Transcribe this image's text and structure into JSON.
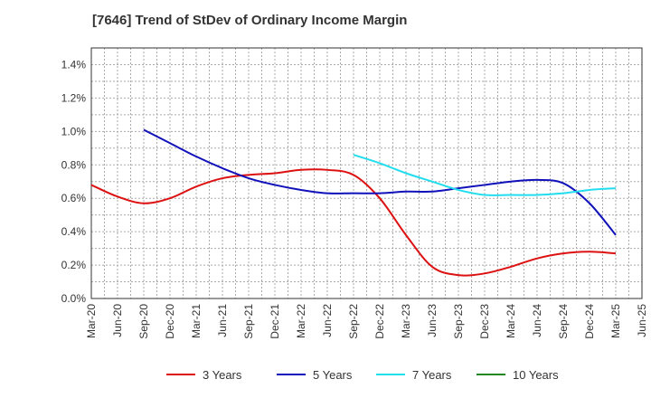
{
  "chart_data": {
    "type": "line",
    "title": "[7646]  Trend of StDev of Ordinary Income Margin",
    "xlabel": "",
    "ylabel": "",
    "x_ticks": [
      "Mar-20",
      "Jun-20",
      "Sep-20",
      "Dec-20",
      "Mar-21",
      "Jun-21",
      "Sep-21",
      "Dec-21",
      "Mar-22",
      "Jun-22",
      "Sep-22",
      "Dec-22",
      "Mar-23",
      "Jun-23",
      "Sep-23",
      "Dec-23",
      "Mar-24",
      "Jun-24",
      "Sep-24",
      "Dec-24",
      "Mar-25",
      "Jun-25"
    ],
    "y_ticks": [
      "0.0%",
      "0.2%",
      "0.4%",
      "0.6%",
      "0.8%",
      "1.0%",
      "1.2%",
      "1.4%"
    ],
    "ylim": [
      0,
      1.5
    ],
    "grid": true,
    "legend_position": "bottom",
    "series": [
      {
        "name": "3 Years",
        "color": "#dd1111",
        "points": [
          [
            0,
            0.68
          ],
          [
            1,
            0.61
          ],
          [
            2,
            0.57
          ],
          [
            3,
            0.6
          ],
          [
            4,
            0.67
          ],
          [
            5,
            0.72
          ],
          [
            6,
            0.74
          ],
          [
            7,
            0.75
          ],
          [
            8,
            0.77
          ],
          [
            9,
            0.77
          ],
          [
            10,
            0.74
          ],
          [
            11,
            0.6
          ],
          [
            12,
            0.38
          ],
          [
            13,
            0.19
          ],
          [
            14,
            0.14
          ],
          [
            15,
            0.15
          ],
          [
            16,
            0.19
          ],
          [
            17,
            0.24
          ],
          [
            18,
            0.27
          ],
          [
            19,
            0.28
          ],
          [
            20,
            0.27
          ]
        ]
      },
      {
        "name": "5 Years",
        "color": "#1111bb",
        "points": [
          [
            2,
            1.01
          ],
          [
            3,
            0.93
          ],
          [
            4,
            0.85
          ],
          [
            5,
            0.78
          ],
          [
            6,
            0.72
          ],
          [
            7,
            0.68
          ],
          [
            8,
            0.65
          ],
          [
            9,
            0.63
          ],
          [
            10,
            0.63
          ],
          [
            11,
            0.63
          ],
          [
            12,
            0.64
          ],
          [
            13,
            0.64
          ],
          [
            14,
            0.66
          ],
          [
            15,
            0.68
          ],
          [
            16,
            0.7
          ],
          [
            17,
            0.71
          ],
          [
            18,
            0.69
          ],
          [
            19,
            0.57
          ],
          [
            20,
            0.38
          ]
        ]
      },
      {
        "name": "7 Years",
        "color": "#22ddee",
        "points": [
          [
            10,
            0.86
          ],
          [
            11,
            0.81
          ],
          [
            12,
            0.75
          ],
          [
            13,
            0.7
          ],
          [
            14,
            0.65
          ],
          [
            15,
            0.62
          ],
          [
            16,
            0.62
          ],
          [
            17,
            0.62
          ],
          [
            18,
            0.63
          ],
          [
            19,
            0.65
          ],
          [
            20,
            0.66
          ]
        ]
      },
      {
        "name": "10 Years",
        "color": "#228822",
        "points": []
      }
    ]
  }
}
